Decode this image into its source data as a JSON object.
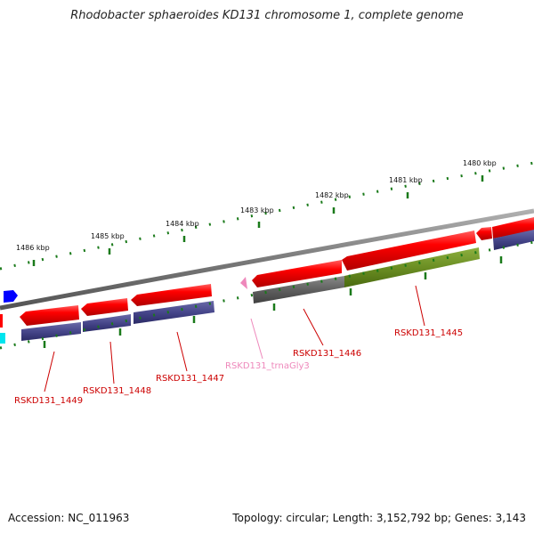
{
  "title": "Rhodobacter sphaeroides KD131 chromosome 1, complete genome",
  "accession": "Accession: NC_011963",
  "topology": "Topology: circular; Length: 3,152,792 bp; Genes: 3,143",
  "kbp_labels": [
    "1486 kbp",
    "1485 kbp",
    "1484 kbp",
    "1483 kbp",
    "1482 kbp",
    "1481 kbp",
    "1480 kbp"
  ],
  "gene_labels": [
    {
      "text": "RSKD131_1449",
      "color": "#cc0000"
    },
    {
      "text": "RSKD131_1448",
      "color": "#cc0000"
    },
    {
      "text": "RSKD131_1447",
      "color": "#cc0000"
    },
    {
      "text": "RSKD131_trnaGly3",
      "color": "#ee88bb"
    },
    {
      "text": "RSKD131_1446",
      "color": "#cc0000"
    },
    {
      "text": "RSKD131_1445",
      "color": "#cc0000"
    }
  ],
  "colors": {
    "backbone": "#808080",
    "gene_forward": "#ff0000",
    "cog_purple": "#4a4a96",
    "cog_gray": "#606060",
    "cog_olive": "#6b8e23",
    "tick": "#1a7a1a",
    "trna": "#ee88bb",
    "blue_marker": "#0000ff",
    "cyan_marker": "#00e5ee"
  }
}
